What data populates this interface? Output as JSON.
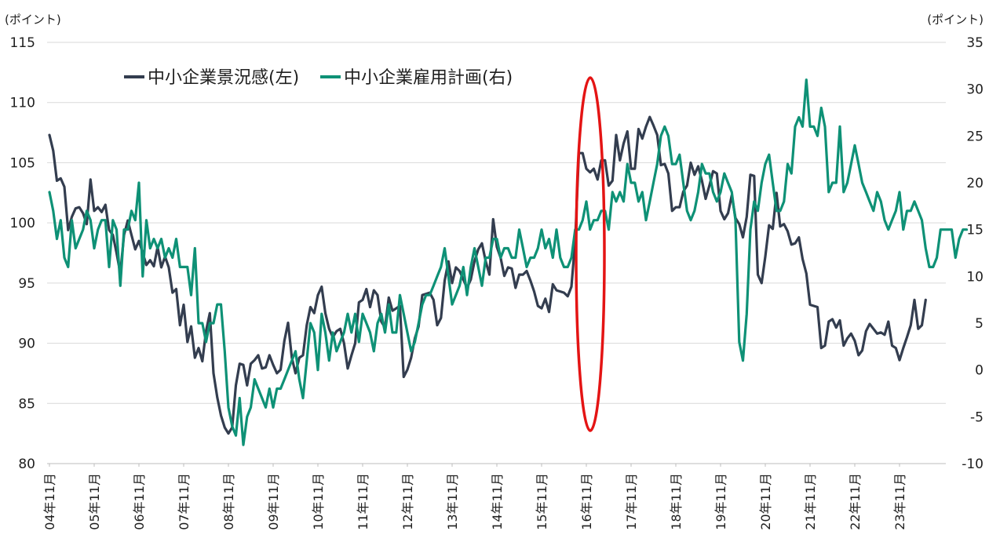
{
  "chart_data": {
    "type": "line",
    "left_unit": "(ポイント)",
    "right_unit": "(ポイント)",
    "left_ticks": [
      80,
      85,
      90,
      95,
      100,
      105,
      110,
      115
    ],
    "right_ticks": [
      -10,
      -5,
      0,
      5,
      10,
      15,
      20,
      25,
      30,
      35
    ],
    "ylim_left": [
      80,
      115
    ],
    "ylim_right": [
      -10,
      35
    ],
    "x_ticks": [
      "04年11月",
      "05年11月",
      "06年11月",
      "07年11月",
      "08年11月",
      "09年11月",
      "10年11月",
      "11年11月",
      "12年11月",
      "13年11月",
      "14年11月",
      "15年11月",
      "16年11月",
      "17年11月",
      "18年11月",
      "19年11月",
      "20年11月",
      "21年11月",
      "22年11月",
      "23年11月"
    ],
    "x_start": "2004-11",
    "grid": "horizontal",
    "legend_position": "top-left",
    "annotation": "red ellipse around 16年11月",
    "colors": {
      "business_sentiment": "#333d4f",
      "hiring_plans": "#0e9176",
      "annotation": "#e41414"
    },
    "series": [
      {
        "name": "中小企業景況感(左)",
        "axis": "left",
        "values": [
          107.3,
          106,
          103.5,
          103.7,
          103,
          99.4,
          100.5,
          101.2,
          101.3,
          100.8,
          99.9,
          103.6,
          101,
          101.3,
          100.9,
          101.5,
          99.4,
          99,
          97.5,
          95.8,
          99,
          100.2,
          99,
          97.8,
          98.5,
          97.5,
          96.5,
          96.9,
          96.4,
          98,
          96.3,
          97.2,
          96.3,
          94.2,
          94.5,
          91.5,
          93.2,
          90.1,
          91.4,
          88.8,
          89.6,
          88.5,
          91,
          92.5,
          87.5,
          85.5,
          84,
          83,
          82.5,
          83,
          86.5,
          88.3,
          88.2,
          86.5,
          88.3,
          88.6,
          89,
          87.9,
          88,
          89,
          88.2,
          87.5,
          87.8,
          90.2,
          91.7,
          88.8,
          87.5,
          88.8,
          89,
          91.5,
          93,
          92.5,
          94,
          94.7,
          92.5,
          91.2,
          90.5,
          91,
          91.2,
          90,
          87.9,
          89,
          90,
          93.4,
          93.6,
          94.5,
          93,
          94.4,
          94,
          91.8,
          91.3,
          93.8,
          92.7,
          92.9,
          93.1,
          87.2,
          87.8,
          88.8,
          90.4,
          91.4,
          94,
          94.1,
          94.2,
          93.6,
          91.5,
          92.1,
          95.2,
          96.8,
          95,
          96.3,
          96,
          95.3,
          94.6,
          95.3,
          96.8,
          97.8,
          98.3,
          96.8,
          95.7,
          100.3,
          98,
          97.1,
          95.6,
          96.3,
          96.2,
          94.6,
          95.7,
          95.7,
          96,
          95.2,
          94.3,
          93.1,
          92.9,
          93.7,
          92.6,
          94.9,
          94.4,
          94.3,
          94.2,
          93.9,
          94.7,
          98.5,
          105.8,
          105.8,
          104.5,
          104.2,
          104.5,
          103.6,
          105.2,
          105.2,
          103.1,
          103.5,
          107.3,
          105.2,
          106.6,
          107.6,
          104.5,
          104.5,
          107.8,
          107,
          108,
          108.8,
          108.1,
          107.3,
          104.8,
          104.9,
          104.1,
          101,
          101.3,
          101.3,
          102.6,
          103.1,
          105,
          104,
          104.7,
          103.5,
          102,
          103.1,
          104.3,
          104.1,
          101,
          100.3,
          100.8,
          102.3,
          100.4,
          99.9,
          98.8,
          100.5,
          104,
          103.9,
          95.7,
          95,
          97.2,
          99.8,
          99.5,
          102.5,
          99.7,
          99.9,
          99.3,
          98.2,
          98.3,
          98.8,
          97,
          95.8,
          93.2,
          93.1,
          93,
          89.6,
          89.8,
          91.8,
          92,
          91.3,
          91.9,
          89.8,
          90.4,
          90.8,
          90.2,
          89,
          89.4,
          91,
          91.6,
          91.2,
          90.8,
          90.9,
          90.7,
          91.8,
          89.8,
          89.6,
          88.6,
          89.6,
          90.5,
          91.5,
          93.6,
          91.2,
          91.5,
          93.6
        ]
      },
      {
        "name": "中小企業雇用計画(右)",
        "axis": "right",
        "values": [
          19,
          17,
          14,
          16,
          12,
          11,
          16,
          13,
          14,
          15,
          17,
          16,
          13,
          15,
          16,
          16,
          11,
          16,
          15,
          9,
          15,
          15,
          17,
          16,
          20,
          10,
          16,
          13,
          14,
          13,
          14,
          12,
          13,
          12,
          14,
          11,
          11,
          11,
          8,
          13,
          5,
          5,
          3,
          5,
          5,
          7,
          7,
          2,
          -4,
          -6,
          -7,
          -3,
          -8,
          -5,
          -4,
          -1,
          -2,
          -3,
          -4,
          -2,
          -4,
          -2,
          -2,
          -1,
          0,
          1,
          2,
          -1,
          -3,
          1,
          5,
          4,
          0,
          6,
          4,
          1,
          4,
          2,
          3,
          4,
          6,
          4,
          6,
          3,
          6,
          5,
          4,
          2,
          5,
          6,
          4,
          7,
          4,
          4,
          8,
          6,
          4,
          2,
          3,
          5,
          7,
          8,
          8,
          9,
          10,
          11,
          13,
          10,
          7,
          8,
          9,
          11,
          8,
          11,
          13,
          11,
          9,
          12,
          12,
          14,
          14,
          12,
          13,
          13,
          12,
          12,
          15,
          13,
          11,
          12,
          12,
          13,
          15,
          13,
          14,
          12,
          15,
          12,
          11,
          11,
          12,
          15,
          15,
          16,
          18,
          15,
          16,
          16,
          17,
          17,
          15,
          19,
          18,
          19,
          18,
          22,
          20,
          20,
          18,
          19,
          16,
          18,
          20,
          22,
          25,
          26,
          25,
          22,
          22,
          23,
          20,
          17,
          16,
          17,
          19,
          22,
          21,
          21,
          19,
          18,
          19,
          21,
          20,
          19,
          16,
          3,
          1,
          6,
          15,
          18,
          17,
          20,
          22,
          23,
          20,
          17,
          17,
          18,
          22,
          21,
          26,
          27,
          26,
          31,
          26,
          26,
          25,
          28,
          26,
          19,
          20,
          20,
          26,
          19,
          20,
          22,
          24,
          22,
          20,
          19,
          18,
          17,
          19,
          18,
          16,
          15,
          16,
          17,
          19,
          15,
          17,
          17,
          18,
          17,
          16,
          13,
          11,
          11,
          12,
          15,
          15,
          15,
          15,
          12,
          14,
          15,
          15
        ]
      }
    ]
  }
}
